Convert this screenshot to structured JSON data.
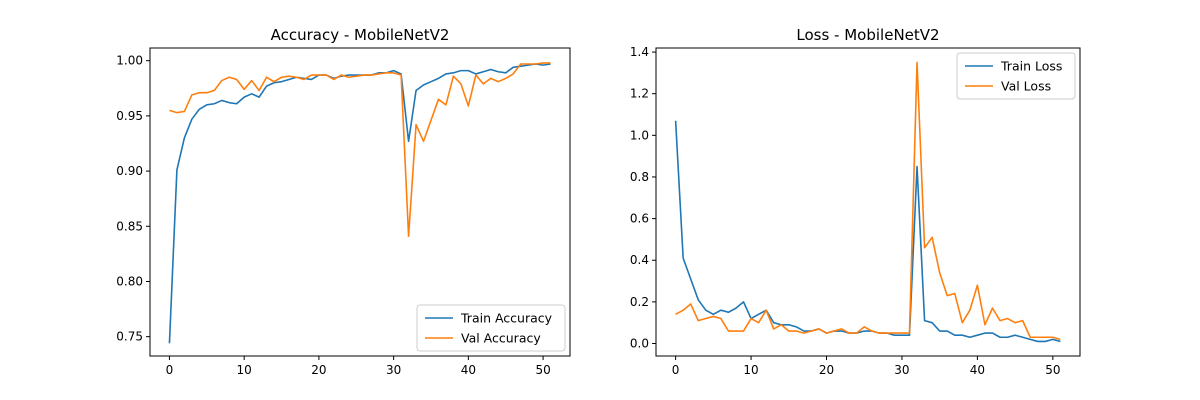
{
  "chart_data": [
    {
      "type": "line",
      "title": "Accuracy - MobileNetV2",
      "xlabel": "",
      "ylabel": "",
      "xlim": [
        -2.6,
        53.6
      ],
      "ylim": [
        0.7325,
        1.0115
      ],
      "xticks": [
        0,
        10,
        20,
        30,
        40,
        50
      ],
      "yticks": [
        0.75,
        0.8,
        0.85,
        0.9,
        0.95,
        1.0
      ],
      "ytick_labels": [
        "0.75",
        "0.80",
        "0.85",
        "0.90",
        "0.95",
        "1.00"
      ],
      "grid": false,
      "legend": "lower-right",
      "x": [
        0,
        1,
        2,
        3,
        4,
        5,
        6,
        7,
        8,
        9,
        10,
        11,
        12,
        13,
        14,
        15,
        16,
        17,
        18,
        19,
        20,
        21,
        22,
        23,
        24,
        25,
        26,
        27,
        28,
        29,
        30,
        31,
        32,
        33,
        34,
        35,
        36,
        37,
        38,
        39,
        40,
        41,
        42,
        43,
        44,
        45,
        46,
        47,
        48,
        49,
        50,
        51
      ],
      "series": [
        {
          "name": "Train Accuracy",
          "color": "#1f77b4",
          "values": [
            0.744,
            0.901,
            0.93,
            0.947,
            0.956,
            0.96,
            0.961,
            0.964,
            0.962,
            0.961,
            0.967,
            0.97,
            0.967,
            0.977,
            0.98,
            0.981,
            0.983,
            0.985,
            0.984,
            0.983,
            0.987,
            0.987,
            0.984,
            0.986,
            0.987,
            0.987,
            0.987,
            0.987,
            0.989,
            0.989,
            0.991,
            0.988,
            0.927,
            0.973,
            0.978,
            0.981,
            0.984,
            0.988,
            0.989,
            0.991,
            0.991,
            0.988,
            0.99,
            0.992,
            0.99,
            0.989,
            0.994,
            0.995,
            0.996,
            0.997,
            0.996,
            0.997
          ]
        },
        {
          "name": "Val Accuracy",
          "color": "#ff7f0e",
          "values": [
            0.955,
            0.953,
            0.954,
            0.969,
            0.971,
            0.971,
            0.973,
            0.982,
            0.985,
            0.983,
            0.974,
            0.982,
            0.973,
            0.985,
            0.981,
            0.985,
            0.986,
            0.985,
            0.983,
            0.987,
            0.987,
            0.987,
            0.983,
            0.987,
            0.985,
            0.986,
            0.987,
            0.987,
            0.988,
            0.989,
            0.989,
            0.987,
            0.841,
            0.942,
            0.927,
            0.946,
            0.965,
            0.96,
            0.986,
            0.979,
            0.959,
            0.987,
            0.979,
            0.984,
            0.981,
            0.984,
            0.988,
            0.997,
            0.997,
            0.997,
            0.998,
            0.998
          ]
        }
      ]
    },
    {
      "type": "line",
      "title": "Loss - MobileNetV2",
      "xlabel": "",
      "ylabel": "",
      "xlim": [
        -2.6,
        53.6
      ],
      "ylim": [
        -0.06,
        1.4195
      ],
      "xticks": [
        0,
        10,
        20,
        30,
        40,
        50
      ],
      "yticks": [
        0.0,
        0.2,
        0.4,
        0.6,
        0.8,
        1.0,
        1.2,
        1.4
      ],
      "ytick_labels": [
        "0.0",
        "0.2",
        "0.4",
        "0.6",
        "0.8",
        "1.0",
        "1.2",
        "1.4"
      ],
      "grid": false,
      "legend": "top-right",
      "x": [
        0,
        1,
        2,
        3,
        4,
        5,
        6,
        7,
        8,
        9,
        10,
        11,
        12,
        13,
        14,
        15,
        16,
        17,
        18,
        19,
        20,
        21,
        22,
        23,
        24,
        25,
        26,
        27,
        28,
        29,
        30,
        31,
        32,
        33,
        34,
        35,
        36,
        37,
        38,
        39,
        40,
        41,
        42,
        43,
        44,
        45,
        46,
        47,
        48,
        49,
        50,
        51
      ],
      "series": [
        {
          "name": "Train Loss",
          "color": "#1f77b4",
          "values": [
            1.07,
            0.41,
            0.31,
            0.21,
            0.16,
            0.14,
            0.16,
            0.15,
            0.17,
            0.2,
            0.12,
            0.14,
            0.16,
            0.1,
            0.09,
            0.09,
            0.08,
            0.06,
            0.06,
            0.07,
            0.05,
            0.06,
            0.06,
            0.05,
            0.05,
            0.06,
            0.06,
            0.05,
            0.05,
            0.04,
            0.04,
            0.04,
            0.85,
            0.11,
            0.1,
            0.06,
            0.06,
            0.04,
            0.04,
            0.03,
            0.04,
            0.05,
            0.05,
            0.03,
            0.03,
            0.04,
            0.03,
            0.02,
            0.01,
            0.01,
            0.02,
            0.01
          ]
        },
        {
          "name": "Val Loss",
          "color": "#ff7f0e",
          "values": [
            0.14,
            0.16,
            0.19,
            0.11,
            0.12,
            0.13,
            0.12,
            0.06,
            0.06,
            0.06,
            0.12,
            0.1,
            0.16,
            0.07,
            0.09,
            0.06,
            0.06,
            0.05,
            0.06,
            0.07,
            0.05,
            0.06,
            0.07,
            0.05,
            0.05,
            0.08,
            0.06,
            0.05,
            0.05,
            0.05,
            0.05,
            0.05,
            1.35,
            0.46,
            0.51,
            0.34,
            0.23,
            0.24,
            0.1,
            0.16,
            0.28,
            0.09,
            0.17,
            0.11,
            0.12,
            0.1,
            0.11,
            0.03,
            0.03,
            0.03,
            0.03,
            0.02
          ]
        }
      ]
    }
  ]
}
